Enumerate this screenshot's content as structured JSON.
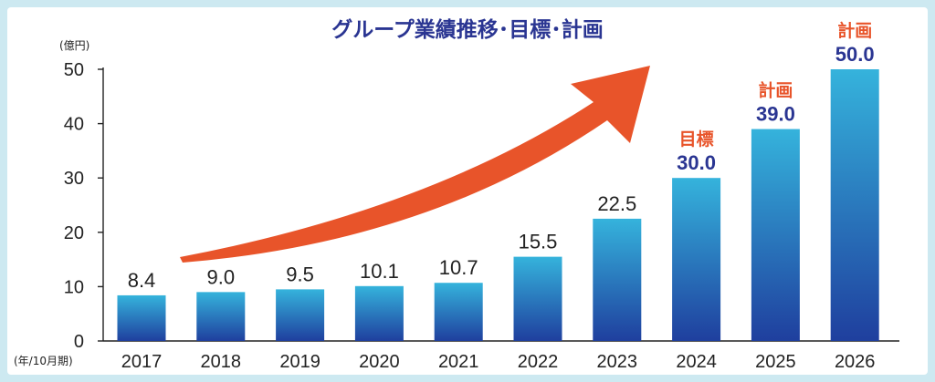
{
  "chart_data": {
    "type": "bar",
    "title": "グループ業績推移･目標･計画",
    "ylabel": "(億円)",
    "xlabel": "(年/10月期)",
    "ylim": [
      0,
      50
    ],
    "yticks": [
      "0",
      "10",
      "20",
      "30",
      "40",
      "50"
    ],
    "categories": [
      "2017",
      "2018",
      "2019",
      "2020",
      "2021",
      "2022",
      "2023",
      "2024",
      "2025",
      "2026"
    ],
    "values": [
      8.4,
      9.0,
      9.5,
      10.1,
      10.7,
      15.5,
      22.5,
      30.0,
      39.0,
      50.0
    ],
    "value_labels": [
      "8.4",
      "9.0",
      "9.5",
      "10.1",
      "10.7",
      "15.5",
      "22.5",
      "30.0",
      "39.0",
      "50.0"
    ],
    "annotations": [
      {
        "category": "2024",
        "text": "目標"
      },
      {
        "category": "2025",
        "text": "計画"
      },
      {
        "category": "2026",
        "text": "計画"
      }
    ],
    "grid": false,
    "colors": {
      "bar_top": "#35b3dc",
      "bar_bottom": "#1f3f9e",
      "arrow": "#e8542a",
      "title": "#2a3592",
      "highlight_value": "#2a3592"
    }
  }
}
